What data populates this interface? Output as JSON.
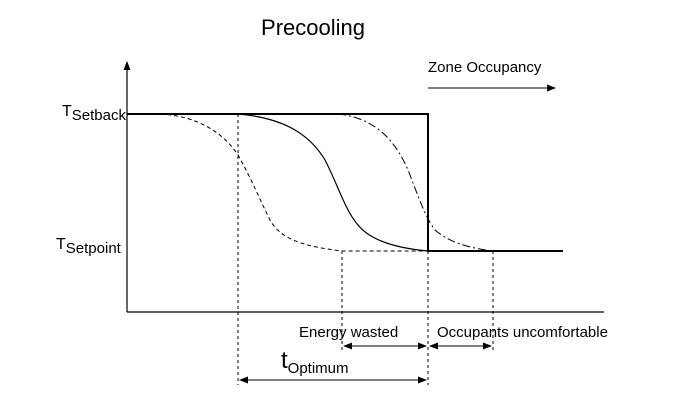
{
  "title": "Precooling",
  "zone_occupancy": "Zone Occupancy",
  "y_labels": {
    "setback_main": "T",
    "setback_sub": "Setback",
    "setpoint_main": "T",
    "setpoint_sub": "Setpoint"
  },
  "annotations": {
    "energy_wasted": "Energy wasted",
    "occupants_uncomfortable": "Occupants uncomfortable",
    "t_optimum_main": "t",
    "t_optimum_sub": "Optimum"
  },
  "colors": {
    "ink": "#000000",
    "background": "#ffffff"
  }
}
